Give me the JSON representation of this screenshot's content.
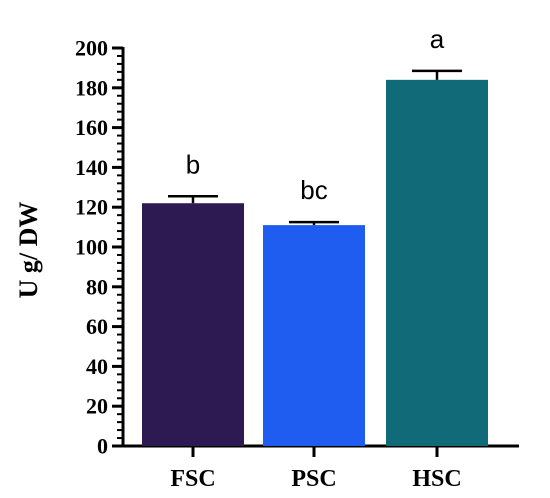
{
  "chart_data": {
    "type": "bar",
    "categories": [
      "FSC",
      "PSC",
      "HSC"
    ],
    "values": [
      122,
      111,
      184
    ],
    "errors": [
      3.5,
      1.5,
      4.5
    ],
    "significance": [
      "b",
      "bc",
      "a"
    ],
    "colors": [
      "#2e1a52",
      "#1f5cf0",
      "#106a78"
    ],
    "ylabel": "U g/ DW",
    "ylim": [
      0,
      200
    ],
    "yticks": [
      0,
      20,
      40,
      60,
      80,
      100,
      120,
      140,
      160,
      180,
      200
    ],
    "minor_ticks_per_major": 4,
    "grid": false
  }
}
